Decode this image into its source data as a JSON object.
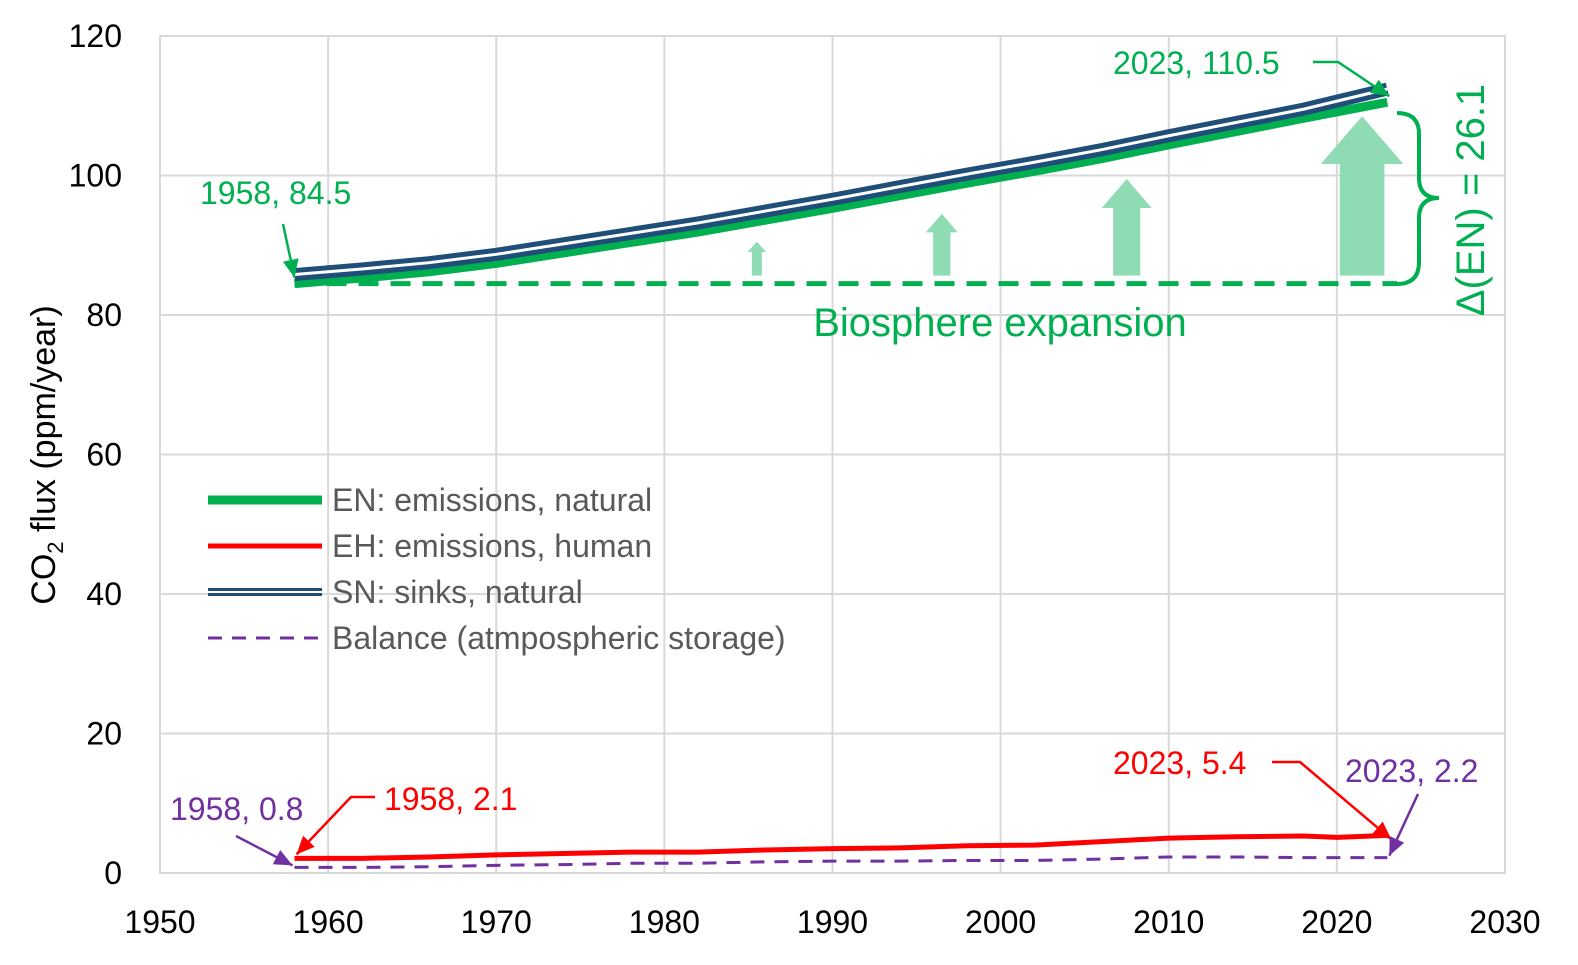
{
  "chart_data": {
    "type": "line",
    "title": "",
    "xlabel": "",
    "ylabel": "CO",
    "ylabel_sub": "2",
    "ylabel_suffix": " flux (ppm/year)",
    "xlim": [
      1950,
      2030
    ],
    "ylim": [
      0,
      120
    ],
    "x_ticks": [
      1950,
      1960,
      1970,
      1980,
      1990,
      2000,
      2010,
      2020,
      2030
    ],
    "y_ticks": [
      0,
      20,
      40,
      60,
      80,
      100,
      120
    ],
    "grid": true,
    "colors": {
      "EN": "#00b050",
      "EH": "#ff0000",
      "SN": "#1f4e79",
      "Balance": "#7030a0",
      "arrows_fill": "#8fdcb4"
    },
    "series": [
      {
        "key": "EN",
        "name": "EN: emissions, natural",
        "x": [
          1958,
          1962,
          1966,
          1970,
          1974,
          1978,
          1982,
          1986,
          1990,
          1994,
          1998,
          2002,
          2006,
          2010,
          2014,
          2018,
          2023
        ],
        "values": [
          84.5,
          85.3,
          86.2,
          87.4,
          88.9,
          90.4,
          91.9,
          93.6,
          95.3,
          97.1,
          98.9,
          100.6,
          102.4,
          104.4,
          106.3,
          108.2,
          110.5
        ]
      },
      {
        "key": "EH",
        "name": "EH: emissions, human",
        "x": [
          1958,
          1962,
          1966,
          1970,
          1974,
          1978,
          1982,
          1986,
          1990,
          1994,
          1998,
          2002,
          2006,
          2010,
          2014,
          2018,
          2020,
          2023
        ],
        "values": [
          2.1,
          2.1,
          2.3,
          2.6,
          2.8,
          3.0,
          3.0,
          3.3,
          3.5,
          3.6,
          3.9,
          4.0,
          4.5,
          5.0,
          5.2,
          5.3,
          5.1,
          5.4
        ]
      },
      {
        "key": "SN",
        "name": "SN: sinks, natural",
        "x": [
          1958,
          1962,
          1966,
          1970,
          1974,
          1978,
          1982,
          1986,
          1990,
          1994,
          1998,
          2002,
          2006,
          2010,
          2014,
          2018,
          2023
        ],
        "values": [
          85.8,
          86.6,
          87.5,
          88.7,
          90.2,
          91.7,
          93.2,
          94.9,
          96.6,
          98.4,
          100.2,
          101.9,
          103.7,
          105.7,
          107.6,
          109.5,
          112.4
        ]
      },
      {
        "key": "Balance",
        "name": "Balance (atmpospheric storage)",
        "x": [
          1958,
          1962,
          1966,
          1970,
          1974,
          1978,
          1982,
          1986,
          1990,
          1994,
          1998,
          2002,
          2006,
          2010,
          2014,
          2018,
          2023
        ],
        "values": [
          0.8,
          0.8,
          0.9,
          1.1,
          1.2,
          1.4,
          1.4,
          1.6,
          1.7,
          1.7,
          1.8,
          1.8,
          2.0,
          2.3,
          2.3,
          2.2,
          2.2
        ]
      }
    ],
    "baseline": {
      "value": 84.5,
      "from": 1958,
      "to": 2023
    },
    "expansion_arrows": [
      {
        "x": 1985.5,
        "top": 90.5
      },
      {
        "x": 1996.5,
        "top": 94.5
      },
      {
        "x": 2007.5,
        "top": 99.5
      },
      {
        "x": 2021.5,
        "top": 108.5
      }
    ],
    "annotations": {
      "en_start": "1958, 84.5",
      "en_end": "2023, 110.5",
      "eh_start": "1958, 2.1",
      "eh_end": "2023, 5.4",
      "bal_start": "1958, 0.8",
      "bal_end": "2023, 2.2",
      "biosphere": "Biosphere expansion",
      "delta": "Δ(EN) = 26.1"
    }
  }
}
